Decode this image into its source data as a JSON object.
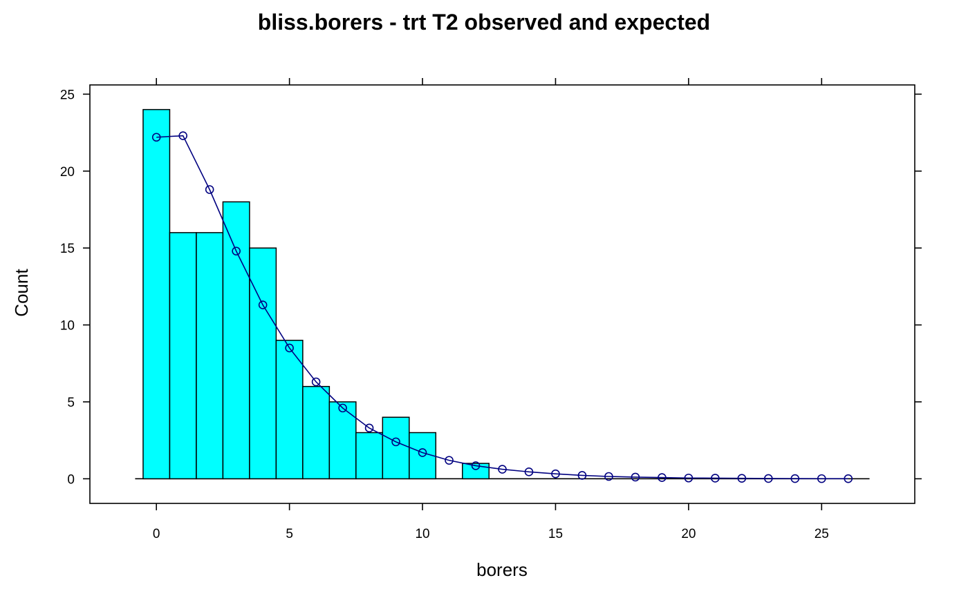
{
  "chart_data": {
    "type": "bar",
    "title": "bliss.borers - trt T2 observed and expected",
    "xlabel": "borers",
    "ylabel": "Count",
    "xlim": [
      -2.5,
      28.5
    ],
    "ylim": [
      -1.6,
      25.6
    ],
    "xticks": [
      0,
      5,
      10,
      15,
      20,
      25
    ],
    "yticks": [
      0,
      5,
      10,
      15,
      20,
      25
    ],
    "grid": false,
    "legend": "none",
    "colors": {
      "bar_fill": "#00ffff",
      "bar_stroke": "#000000",
      "line": "#000080"
    },
    "series": [
      {
        "kind": "histogram",
        "x": [
          0,
          1,
          2,
          3,
          4,
          5,
          6,
          7,
          8,
          9,
          10,
          11,
          12
        ],
        "values": [
          24,
          16,
          16,
          18,
          15,
          9,
          6,
          5,
          3,
          4,
          3,
          0,
          1
        ]
      },
      {
        "kind": "line-points",
        "x": [
          0,
          1,
          2,
          3,
          4,
          5,
          6,
          7,
          8,
          9,
          10,
          11,
          12,
          13,
          14,
          15,
          16,
          17,
          18,
          19,
          20,
          21,
          22,
          23,
          24,
          25,
          26
        ],
        "values": [
          22.2,
          22.3,
          18.8,
          14.8,
          11.3,
          8.5,
          6.3,
          4.6,
          3.3,
          2.4,
          1.7,
          1.2,
          0.85,
          0.62,
          0.45,
          0.32,
          0.22,
          0.15,
          0.11,
          0.08,
          0.05,
          0.04,
          0.03,
          0.02,
          0.015,
          0.01,
          0.008
        ]
      }
    ]
  }
}
